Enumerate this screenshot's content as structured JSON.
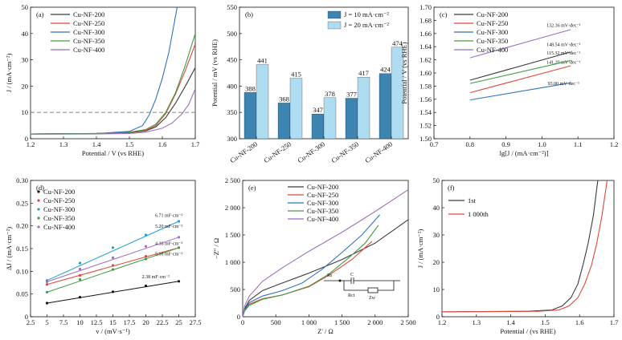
{
  "chart_data": [
    {
      "id": "a",
      "type": "line",
      "panel_label": "(a)",
      "xlabel": "Potential / V (vs RHE)",
      "ylabel": "J / (mA·cm⁻²)",
      "xlim": [
        1.2,
        1.7
      ],
      "ylim": [
        0,
        50
      ],
      "xticks": [
        "1.2",
        "1.3",
        "1.4",
        "1.5",
        "1.6",
        "1.7"
      ],
      "yticks": [
        "0",
        "10",
        "20",
        "30",
        "40",
        "50"
      ],
      "reference_line_y": 10,
      "legend_position": "top-left",
      "series": [
        {
          "name": "Cu-NF-200",
          "color": "#3a3a3a",
          "points": [
            [
              1.2,
              1.8
            ],
            [
              1.4,
              2.0
            ],
            [
              1.5,
              2.3
            ],
            [
              1.55,
              3.0
            ],
            [
              1.58,
              4.5
            ],
            [
              1.61,
              8.0
            ],
            [
              1.64,
              13.5
            ],
            [
              1.67,
              20.0
            ],
            [
              1.7,
              27.0
            ]
          ]
        },
        {
          "name": "Cu-NF-250",
          "color": "#e0453a",
          "points": [
            [
              1.2,
              1.8
            ],
            [
              1.4,
              2.0
            ],
            [
              1.5,
              2.4
            ],
            [
              1.55,
              3.2
            ],
            [
              1.58,
              5.0
            ],
            [
              1.61,
              9.5
            ],
            [
              1.64,
              17.0
            ],
            [
              1.67,
              26.0
            ],
            [
              1.7,
              36.0
            ]
          ]
        },
        {
          "name": "Cu-NF-300",
          "color": "#2f74c0",
          "points": [
            [
              1.2,
              1.8
            ],
            [
              1.4,
              2.0
            ],
            [
              1.5,
              2.8
            ],
            [
              1.54,
              5.0
            ],
            [
              1.56,
              9.0
            ],
            [
              1.58,
              15.0
            ],
            [
              1.6,
              23.0
            ],
            [
              1.62,
              33.0
            ],
            [
              1.645,
              50.0
            ]
          ]
        },
        {
          "name": "Cu-NF-350",
          "color": "#3f9e45",
          "points": [
            [
              1.2,
              1.8
            ],
            [
              1.4,
              2.0
            ],
            [
              1.5,
              2.5
            ],
            [
              1.55,
              3.5
            ],
            [
              1.58,
              5.5
            ],
            [
              1.61,
              10.0
            ],
            [
              1.64,
              17.5
            ],
            [
              1.67,
              28.0
            ],
            [
              1.7,
              40.0
            ]
          ]
        },
        {
          "name": "Cu-NF-400",
          "color": "#9b6fc5",
          "points": [
            [
              1.2,
              1.7
            ],
            [
              1.4,
              1.8
            ],
            [
              1.5,
              2.0
            ],
            [
              1.55,
              2.5
            ],
            [
              1.6,
              4.0
            ],
            [
              1.63,
              6.0
            ],
            [
              1.66,
              9.5
            ],
            [
              1.68,
              13.0
            ],
            [
              1.7,
              19.0
            ]
          ]
        }
      ]
    },
    {
      "id": "b",
      "type": "bar",
      "panel_label": "(b)",
      "xlabel": "",
      "ylabel": "Potential / mV (vs RHE)",
      "ylim": [
        300,
        550
      ],
      "yticks": [
        "300",
        "350",
        "400",
        "450",
        "500",
        "550"
      ],
      "categories": [
        "Cu-NF-200",
        "Cu-NF-250",
        "Cu-NF-300",
        "Cu-NF-350",
        "Cu-NF-400"
      ],
      "legend_position": "top-right",
      "series": [
        {
          "name": "J = 10 mA·cm⁻²",
          "color": "#3d84b0",
          "values": [
            388,
            368,
            347,
            377,
            424
          ],
          "labels": [
            "388",
            "368",
            "347",
            "377",
            "424"
          ]
        },
        {
          "name": "J = 20 mA·cm⁻²",
          "color": "#aedcf0",
          "values": [
            441,
            415,
            378,
            417,
            474
          ],
          "labels": [
            "441",
            "415",
            "378",
            "417",
            "474"
          ]
        }
      ]
    },
    {
      "id": "c",
      "type": "line",
      "panel_label": "(c)",
      "xlabel": "lg[J / (mA·cm⁻²)]",
      "ylabel": "Potential / V (vs RHE)",
      "xlim": [
        0.7,
        1.2
      ],
      "ylim": [
        1.5,
        1.7
      ],
      "xticks": [
        "0.7",
        "0.8",
        "0.9",
        "1.0",
        "1.1",
        "1.2"
      ],
      "yticks": [
        "1.50",
        "1.52",
        "1.54",
        "1.56",
        "1.58",
        "1.60",
        "1.62",
        "1.64",
        "1.66",
        "1.68",
        "1.70"
      ],
      "legend_position": "top-left",
      "series": [
        {
          "name": "Cu-NF-200",
          "color": "#3a3a3a",
          "points": [
            [
              0.8,
              1.589
            ],
            [
              1.08,
              1.632
            ]
          ],
          "annotation": "148.54 mV·dec⁻¹",
          "annotation_at": [
            1.06,
            1.641
          ]
        },
        {
          "name": "Cu-NF-250",
          "color": "#e0453a",
          "points": [
            [
              0.8,
              1.57
            ],
            [
              1.08,
              1.611
            ]
          ],
          "annotation": "141.20 mV·dec⁻¹",
          "annotation_at": [
            1.06,
            1.614
          ]
        },
        {
          "name": "Cu-NF-300",
          "color": "#2f74c0",
          "points": [
            [
              0.8,
              1.559
            ],
            [
              1.08,
              1.585
            ]
          ],
          "annotation": "93.00 mV·dec⁻¹",
          "annotation_at": [
            1.06,
            1.582
          ]
        },
        {
          "name": "Cu-NF-350",
          "color": "#3f9e45",
          "points": [
            [
              0.8,
              1.584
            ],
            [
              1.08,
              1.619
            ]
          ],
          "annotation": "115.32 mV·dec⁻¹",
          "annotation_at": [
            1.06,
            1.628
          ]
        },
        {
          "name": "Cu-NF-400",
          "color": "#9b6fc5",
          "points": [
            [
              0.8,
              1.623
            ],
            [
              1.08,
              1.666
            ]
          ],
          "annotation": "132.36 mV·dec⁻¹",
          "annotation_at": [
            1.06,
            1.67
          ]
        }
      ]
    },
    {
      "id": "d",
      "type": "scatter",
      "panel_label": "(d)",
      "xlabel": "v / (mV·s⁻¹)",
      "ylabel": "ΔJ / (mA·cm⁻²)",
      "xlim": [
        2.5,
        27.5
      ],
      "ylim": [
        0,
        0.3
      ],
      "xticks": [
        "2.5",
        "5",
        "7.5",
        "10",
        "12.5",
        "15",
        "17.5",
        "20",
        "22.5",
        "25",
        "27.5"
      ],
      "yticks": [
        "0",
        "0.05",
        "0.10",
        "0.15",
        "0.20",
        "0.25",
        "0.30"
      ],
      "legend_position": "top-left",
      "series": [
        {
          "name": "Cu-NF-200",
          "color": "#111111",
          "x": [
            5,
            10,
            15,
            20,
            25
          ],
          "y": [
            0.03,
            0.043,
            0.055,
            0.068,
            0.078
          ],
          "annotation": "2.38 mF·cm⁻²",
          "annotation_at": [
            21.5,
            0.085
          ]
        },
        {
          "name": "Cu-NF-250",
          "color": "#e0453a",
          "x": [
            5,
            10,
            15,
            20,
            25
          ],
          "y": [
            0.071,
            0.091,
            0.113,
            0.133,
            0.152
          ],
          "annotation": "4.38 mF·cm⁻²",
          "annotation_at": [
            23.5,
            0.158
          ]
        },
        {
          "name": "Cu-NF-300",
          "color": "#1f9fd0",
          "x": [
            5,
            10,
            15,
            20,
            25
          ],
          "y": [
            0.08,
            0.118,
            0.152,
            0.18,
            0.21
          ],
          "annotation": "6.71 mF·cm⁻²",
          "annotation_at": [
            23.5,
            0.22
          ]
        },
        {
          "name": "Cu-NF-350",
          "color": "#3f9e45",
          "x": [
            5,
            10,
            15,
            20,
            25
          ],
          "y": [
            0.054,
            0.082,
            0.104,
            0.127,
            0.152
          ],
          "annotation": "5.16 mF·cm⁻²",
          "annotation_at": [
            23.5,
            0.135
          ]
        },
        {
          "name": "Cu-NF-400",
          "color": "#9b6fc5",
          "x": [
            5,
            10,
            15,
            20,
            25
          ],
          "y": [
            0.077,
            0.105,
            0.13,
            0.155,
            0.175
          ],
          "annotation": "5.20 mF·cm⁻²",
          "annotation_at": [
            23.5,
            0.196
          ]
        }
      ]
    },
    {
      "id": "e",
      "type": "line",
      "panel_label": "(e)",
      "xlabel": "Z' / Ω",
      "ylabel": "−Z\" / Ω",
      "xlim": [
        0,
        2500
      ],
      "ylim": [
        0,
        2500
      ],
      "xticks": [
        "0",
        "500",
        "1 000",
        "1 500",
        "2 000",
        "2 500"
      ],
      "yticks": [
        "0",
        "500",
        "1 000",
        "1 500",
        "2 000",
        "2 500"
      ],
      "legend_position": "top-center",
      "circuit_labels": [
        "Rs",
        "C",
        "Rct",
        "Zw"
      ],
      "series": [
        {
          "name": "Cu-NF-200",
          "color": "#3a3a3a",
          "points": [
            [
              0,
              0
            ],
            [
              30,
              150
            ],
            [
              100,
              300
            ],
            [
              300,
              480
            ],
            [
              600,
              620
            ],
            [
              1000,
              800
            ],
            [
              1500,
              1050
            ],
            [
              2000,
              1350
            ],
            [
              2500,
              1780
            ]
          ]
        },
        {
          "name": "Cu-NF-250",
          "color": "#e0453a",
          "points": [
            [
              0,
              0
            ],
            [
              30,
              120
            ],
            [
              100,
              230
            ],
            [
              300,
              330
            ],
            [
              600,
              400
            ],
            [
              1000,
              550
            ],
            [
              1300,
              760
            ],
            [
              1650,
              1050
            ],
            [
              1950,
              1380
            ]
          ]
        },
        {
          "name": "Cu-NF-300",
          "color": "#2f74c0",
          "points": [
            [
              0,
              0
            ],
            [
              30,
              130
            ],
            [
              100,
              260
            ],
            [
              300,
              380
            ],
            [
              600,
              480
            ],
            [
              900,
              620
            ],
            [
              1200,
              870
            ],
            [
              1500,
              1180
            ],
            [
              1800,
              1500
            ],
            [
              2070,
              1870
            ]
          ]
        },
        {
          "name": "Cu-NF-350",
          "color": "#3f9e45",
          "points": [
            [
              0,
              0
            ],
            [
              30,
              110
            ],
            [
              100,
              210
            ],
            [
              300,
              320
            ],
            [
              600,
              400
            ],
            [
              1000,
              560
            ],
            [
              1300,
              780
            ],
            [
              1600,
              1080
            ],
            [
              1850,
              1350
            ],
            [
              2050,
              1680
            ]
          ]
        },
        {
          "name": "Cu-NF-400",
          "color": "#9b6fc5",
          "points": [
            [
              0,
              0
            ],
            [
              30,
              200
            ],
            [
              100,
              380
            ],
            [
              300,
              650
            ],
            [
              600,
              900
            ],
            [
              1000,
              1200
            ],
            [
              1500,
              1550
            ],
            [
              2000,
              1930
            ],
            [
              2500,
              2330
            ]
          ]
        }
      ]
    },
    {
      "id": "f",
      "type": "line",
      "panel_label": "(f)",
      "xlabel": "Potential / (vs RHE)",
      "ylabel": "J / (mA·cm⁻²)",
      "xlim": [
        1.2,
        1.7
      ],
      "ylim": [
        0,
        50
      ],
      "xticks": [
        "1.2",
        "1.3",
        "1.4",
        "1.5",
        "1.6",
        "1.7"
      ],
      "yticks": [
        "0",
        "10",
        "20",
        "30",
        "40",
        "50"
      ],
      "legend_position": "top-left",
      "series": [
        {
          "name": "1st",
          "color": "#3a3a3a",
          "points": [
            [
              1.2,
              1.8
            ],
            [
              1.45,
              2.0
            ],
            [
              1.52,
              2.5
            ],
            [
              1.55,
              4.0
            ],
            [
              1.575,
              7.0
            ],
            [
              1.595,
              12.0
            ],
            [
              1.61,
              19.0
            ],
            [
              1.625,
              27.0
            ],
            [
              1.64,
              37.0
            ],
            [
              1.653,
              50.0
            ]
          ]
        },
        {
          "name": "1 000th",
          "color": "#e0453a",
          "points": [
            [
              1.2,
              1.8
            ],
            [
              1.48,
              2.0
            ],
            [
              1.54,
              2.5
            ],
            [
              1.57,
              4.0
            ],
            [
              1.595,
              7.0
            ],
            [
              1.615,
              12.0
            ],
            [
              1.635,
              19.0
            ],
            [
              1.65,
              27.0
            ],
            [
              1.665,
              37.0
            ],
            [
              1.68,
              50.0
            ]
          ]
        }
      ]
    }
  ]
}
